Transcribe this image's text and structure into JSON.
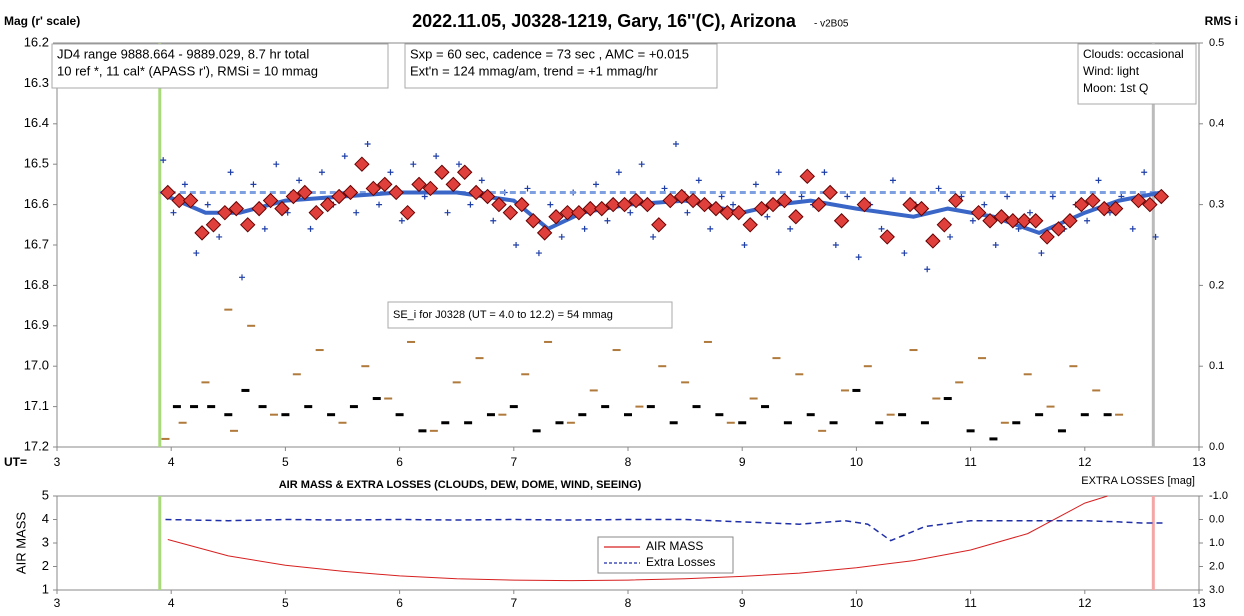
{
  "chart_data": [
    {
      "type": "scatter",
      "title": "2022.11.05, J0328-1219, Gary, 16''(C), Arizona",
      "subtitle": "- v2B05",
      "ylabel": "Mag (r' scale)",
      "y2label": "RMS i",
      "xlabel": "UT=",
      "xlim": [
        3,
        13
      ],
      "xticks": [
        3,
        4,
        5,
        6,
        7,
        8,
        9,
        10,
        11,
        12,
        13
      ],
      "ylim": [
        16.2,
        17.2
      ],
      "y_inverted": true,
      "yticks": [
        16.2,
        16.3,
        16.4,
        16.5,
        16.6,
        16.7,
        16.8,
        16.9,
        {
          "value": 17,
          "label": "17.0"
        },
        17.1,
        17.2
      ],
      "y2lim": [
        0,
        0.5
      ],
      "y2ticks": [
        0.5,
        0.4,
        0.3,
        0.2,
        0.1,
        {
          "value": 0,
          "label": "0.0"
        }
      ],
      "vlines": [
        {
          "x": 3.9,
          "color": "#a9d97a"
        },
        {
          "x": 12.6,
          "color": "#bbbbbb"
        }
      ],
      "annotations": [
        {
          "lines": [
            "JD4 range 9888.664 - 9889.029, 8.7 hr total",
            "10 ref *, 11 cal*  (APASS r'), RMSi = 10 mmag"
          ]
        },
        {
          "lines": [
            "Sxp = 60 sec, cadence = 73 sec , AMC = +0.015",
            "Ext'n = 124 mmag/am, trend = +1 mmag/hr"
          ]
        },
        {
          "lines": [
            "Clouds: occasional",
            "Wind: light",
            "Moon: 1st Q"
          ]
        },
        {
          "lines": [
            "SE_i for J0328 (UT = 4.0 to 12.2) = 54 mmag"
          ]
        }
      ],
      "series": [
        {
          "marker": "dash",
          "axis": "y2",
          "color": "#b07a3c",
          "x": [
            3.95,
            4.1,
            4.3,
            4.5,
            4.55,
            4.7,
            4.9,
            5.1,
            5.3,
            5.5,
            5.7,
            5.9,
            6.1,
            6.3,
            6.5,
            6.7,
            6.9,
            7.1,
            7.3,
            7.5,
            7.7,
            7.9,
            8.1,
            8.3,
            8.5,
            8.7,
            8.9,
            9.1,
            9.3,
            9.5,
            9.7,
            9.9,
            10.1,
            10.3,
            10.5,
            10.7,
            10.9,
            11.1,
            11.3,
            11.5,
            11.7,
            11.9,
            12.1,
            12.3
          ],
          "values": [
            0.01,
            0.03,
            0.08,
            0.17,
            0.02,
            0.15,
            0.04,
            0.09,
            0.12,
            0.03,
            0.1,
            0.06,
            0.13,
            0.02,
            0.08,
            0.11,
            0.04,
            0.09,
            0.13,
            0.03,
            0.07,
            0.12,
            0.05,
            0.1,
            0.08,
            0.13,
            0.03,
            0.06,
            0.11,
            0.09,
            0.02,
            0.07,
            0.1,
            0.04,
            0.12,
            0.06,
            0.08,
            0.11,
            0.03,
            0.09,
            0.05,
            0.1,
            0.07,
            0.04
          ]
        },
        {
          "marker": "dot",
          "axis": "y2",
          "color": "#000000",
          "x": [
            4.05,
            4.2,
            4.35,
            4.5,
            4.65,
            4.8,
            5.0,
            5.2,
            5.4,
            5.6,
            5.8,
            6.0,
            6.2,
            6.4,
            6.6,
            6.8,
            7.0,
            7.2,
            7.4,
            7.6,
            7.8,
            8.0,
            8.2,
            8.4,
            8.6,
            8.8,
            9.0,
            9.2,
            9.4,
            9.6,
            9.8,
            10.0,
            10.2,
            10.4,
            10.6,
            10.8,
            11.0,
            11.2,
            11.4,
            11.6,
            11.8,
            12.0,
            12.2
          ],
          "values": [
            0.05,
            0.05,
            0.05,
            0.04,
            0.07,
            0.05,
            0.04,
            0.05,
            0.04,
            0.05,
            0.06,
            0.04,
            0.02,
            0.03,
            0.03,
            0.04,
            0.05,
            0.02,
            0.03,
            0.04,
            0.05,
            0.04,
            0.05,
            0.03,
            0.05,
            0.04,
            0.03,
            0.05,
            0.03,
            0.04,
            0.03,
            0.07,
            0.03,
            0.04,
            0.03,
            0.06,
            0.02,
            0.01,
            0.03,
            0.04,
            0.02,
            0.04,
            0.04
          ]
        },
        {
          "marker": "cross",
          "color": "#1f3fa8",
          "x": [
            3.93,
            4.02,
            4.12,
            4.22,
            4.32,
            4.42,
            4.52,
            4.62,
            4.72,
            4.82,
            4.92,
            5.02,
            5.12,
            5.22,
            5.32,
            5.42,
            5.52,
            5.62,
            5.72,
            5.82,
            5.92,
            6.02,
            6.12,
            6.22,
            6.32,
            6.42,
            6.52,
            6.62,
            6.72,
            6.82,
            6.92,
            7.02,
            7.12,
            7.22,
            7.32,
            7.42,
            7.52,
            7.62,
            7.72,
            7.82,
            7.92,
            8.02,
            8.12,
            8.22,
            8.32,
            8.42,
            8.52,
            8.62,
            8.72,
            8.82,
            8.92,
            9.02,
            9.12,
            9.22,
            9.32,
            9.42,
            9.52,
            9.62,
            9.72,
            9.82,
            9.92,
            10.02,
            10.12,
            10.22,
            10.32,
            10.42,
            10.52,
            10.62,
            10.72,
            10.82,
            10.92,
            11.02,
            11.12,
            11.22,
            11.32,
            11.42,
            11.52,
            11.62,
            11.72,
            11.82,
            11.92,
            12.02,
            12.12,
            12.22,
            12.32,
            12.42,
            12.52,
            12.62
          ],
          "values": [
            16.49,
            16.62,
            16.55,
            16.72,
            16.6,
            16.68,
            16.52,
            16.78,
            16.55,
            16.66,
            16.5,
            16.62,
            16.54,
            16.66,
            16.52,
            16.6,
            16.48,
            16.62,
            16.45,
            16.6,
            16.52,
            16.64,
            16.5,
            16.58,
            16.48,
            16.62,
            16.5,
            16.6,
            16.54,
            16.64,
            16.57,
            16.7,
            16.56,
            16.72,
            16.6,
            16.68,
            16.57,
            16.66,
            16.55,
            16.64,
            16.52,
            16.62,
            16.5,
            16.68,
            16.56,
            16.45,
            16.62,
            16.54,
            16.66,
            16.58,
            16.6,
            16.7,
            16.55,
            16.63,
            16.52,
            16.66,
            16.58,
            16.6,
            16.52,
            16.7,
            16.58,
            16.73,
            16.6,
            16.66,
            16.54,
            16.72,
            16.6,
            16.76,
            16.56,
            16.68,
            16.58,
            16.64,
            16.6,
            16.7,
            16.58,
            16.66,
            16.62,
            16.72,
            16.58,
            16.66,
            16.6,
            16.64,
            16.54,
            16.62,
            16.58,
            16.66,
            16.52,
            16.68
          ]
        },
        {
          "marker": "line",
          "color": "#7e9fe0",
          "dash": true,
          "width": 3,
          "x": [
            3.9,
            12.67
          ],
          "values": [
            16.57,
            16.57
          ]
        },
        {
          "marker": "line",
          "color": "#3a66c8",
          "width": 4,
          "x": [
            3.97,
            4.3,
            4.6,
            5.0,
            5.5,
            6.0,
            6.5,
            7.0,
            7.3,
            7.6,
            8.0,
            8.5,
            9.0,
            9.3,
            9.6,
            10.0,
            10.5,
            10.8,
            11.2,
            11.6,
            12.0,
            12.3,
            12.67
          ],
          "values": [
            16.58,
            16.62,
            16.62,
            16.59,
            16.58,
            16.57,
            16.57,
            16.59,
            16.66,
            16.62,
            16.6,
            16.59,
            16.62,
            16.6,
            16.59,
            16.61,
            16.63,
            16.61,
            16.63,
            16.67,
            16.62,
            16.59,
            16.57
          ]
        },
        {
          "marker": "diamond",
          "color": "#e0403c",
          "x": [
            3.97,
            4.07,
            4.17,
            4.27,
            4.37,
            4.47,
            4.57,
            4.67,
            4.77,
            4.87,
            4.97,
            5.07,
            5.17,
            5.27,
            5.37,
            5.47,
            5.57,
            5.67,
            5.77,
            5.87,
            5.97,
            6.07,
            6.17,
            6.27,
            6.37,
            6.47,
            6.57,
            6.67,
            6.77,
            6.87,
            6.97,
            7.07,
            7.17,
            7.27,
            7.37,
            7.47,
            7.57,
            7.67,
            7.77,
            7.87,
            7.97,
            8.07,
            8.17,
            8.27,
            8.37,
            8.47,
            8.57,
            8.67,
            8.77,
            8.87,
            8.97,
            9.07,
            9.17,
            9.27,
            9.37,
            9.47,
            9.57,
            9.67,
            9.77,
            9.87,
            10.07,
            10.27,
            10.47,
            10.57,
            10.67,
            10.77,
            10.87,
            11.07,
            11.17,
            11.27,
            11.37,
            11.47,
            11.57,
            11.67,
            11.77,
            11.87,
            11.97,
            12.07,
            12.17,
            12.27,
            12.47,
            12.57,
            12.67
          ],
          "values": [
            16.57,
            16.59,
            16.59,
            16.67,
            16.65,
            16.62,
            16.61,
            16.65,
            16.61,
            16.59,
            16.61,
            16.58,
            16.57,
            16.62,
            16.6,
            16.58,
            16.57,
            16.5,
            16.56,
            16.55,
            16.57,
            16.62,
            16.55,
            16.56,
            16.52,
            16.55,
            16.52,
            16.57,
            16.58,
            16.6,
            16.62,
            16.6,
            16.64,
            16.67,
            16.63,
            16.62,
            16.62,
            16.61,
            16.61,
            16.6,
            16.6,
            16.59,
            16.6,
            16.65,
            16.59,
            16.58,
            16.59,
            16.6,
            16.61,
            16.62,
            16.62,
            16.65,
            16.61,
            16.6,
            16.59,
            16.63,
            16.53,
            16.6,
            16.57,
            16.64,
            16.6,
            16.68,
            16.6,
            16.61,
            16.69,
            16.65,
            16.59,
            16.62,
            16.64,
            16.63,
            16.64,
            16.64,
            16.64,
            16.68,
            16.66,
            16.64,
            16.6,
            16.59,
            16.61,
            16.61,
            16.59,
            16.6,
            16.58
          ]
        }
      ]
    },
    {
      "type": "line",
      "title": "AIR MASS & EXTRA LOSSES (CLOUDS, DEW, DOME, WIND, SEEING)",
      "ylabel": "AIR MASS",
      "y2label": "EXTRA LOSSES [mag]",
      "xlim": [
        3,
        13
      ],
      "xticks": [
        3,
        4,
        5,
        6,
        7,
        8,
        9,
        10,
        11,
        12,
        13
      ],
      "ylim": [
        1,
        5
      ],
      "yticks": [
        1,
        2,
        3,
        4,
        5
      ],
      "y2lim": [
        -1,
        3
      ],
      "y2_inverted": true,
      "y2ticks": [
        {
          "value": -1,
          "label": "-1.0"
        },
        {
          "value": 0,
          "label": "0.0"
        },
        {
          "value": 1,
          "label": "1.0"
        },
        {
          "value": 2,
          "label": "2.0"
        },
        {
          "value": 3,
          "label": "3.0"
        }
      ],
      "vlines": [
        {
          "x": 3.9,
          "color": "#a9d97a"
        },
        {
          "x": 12.6,
          "color": "#f4a6a6"
        }
      ],
      "series": [
        {
          "name": "AIR MASS",
          "marker": "line",
          "color": "#d62020",
          "width": 1,
          "x": [
            3.97,
            4.5,
            5,
            5.5,
            6,
            6.5,
            7,
            7.5,
            8,
            8.5,
            9,
            9.5,
            10,
            10.5,
            11,
            11.5,
            12,
            12.2
          ],
          "values": [
            3.15,
            2.45,
            2.05,
            1.8,
            1.6,
            1.48,
            1.42,
            1.4,
            1.42,
            1.48,
            1.58,
            1.72,
            1.95,
            2.25,
            2.7,
            3.4,
            4.7,
            5
          ]
        },
        {
          "name": "Extra Losses",
          "marker": "line",
          "axis": "y2",
          "color": "#1f2fa8",
          "dash": true,
          "width": 1.5,
          "x": [
            3.95,
            4.5,
            5,
            5.5,
            6,
            6.5,
            7,
            7.5,
            8,
            8.5,
            9,
            9.5,
            9.9,
            10.1,
            10.3,
            10.4,
            10.5,
            10.6,
            11,
            11.5,
            12,
            12.3,
            12.5,
            12.7
          ],
          "values": [
            0,
            0.05,
            0,
            0.02,
            0,
            0.02,
            0,
            0.02,
            0,
            0,
            0.1,
            0.2,
            0.05,
            0.2,
            0.9,
            0.7,
            0.5,
            0.3,
            0.05,
            0.05,
            0.05,
            0.1,
            0.15,
            0.15
          ]
        }
      ]
    }
  ]
}
